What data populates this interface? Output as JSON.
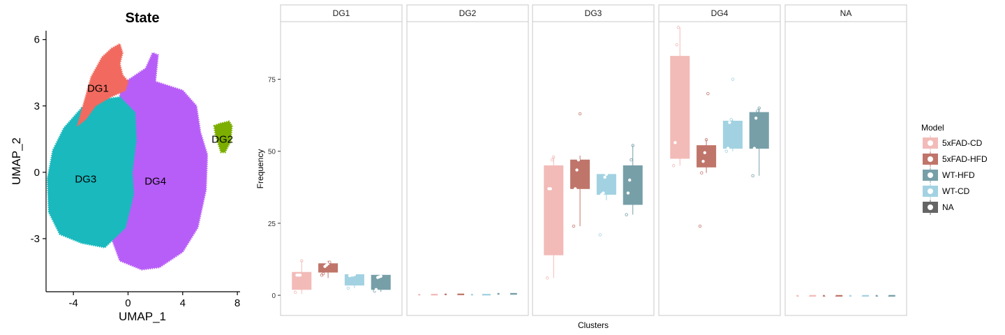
{
  "chart_data": [
    {
      "type": "scatter",
      "title": "State",
      "xlabel": "UMAP_1",
      "ylabel": "UMAP_2",
      "xlim": [
        -6.0,
        8.2
      ],
      "ylim": [
        -5.4,
        6.4
      ],
      "xticks": [
        -4,
        0,
        4,
        8
      ],
      "xtick_labels": [
        "-4",
        "0",
        "4",
        "8"
      ],
      "yticks": [
        -3,
        0,
        3,
        6
      ],
      "ytick_labels": [
        "-3",
        "0",
        "3",
        "6"
      ],
      "grid": false,
      "clusters": [
        {
          "name": "DG4",
          "color": "#B85EF8",
          "label_pos": [
            2.0,
            -0.4
          ],
          "polygon": [
            [
              -0.9,
              2.6
            ],
            [
              -0.4,
              4.0
            ],
            [
              1.3,
              4.7
            ],
            [
              1.8,
              5.4
            ],
            [
              2.2,
              5.3
            ],
            [
              2.0,
              4.1
            ],
            [
              4.0,
              3.7
            ],
            [
              5.0,
              3.0
            ],
            [
              5.3,
              1.8
            ],
            [
              5.8,
              0.8
            ],
            [
              5.7,
              -0.8
            ],
            [
              5.1,
              -2.5
            ],
            [
              4.0,
              -3.6
            ],
            [
              2.3,
              -4.3
            ],
            [
              1.0,
              -4.4
            ],
            [
              -0.6,
              -4.0
            ],
            [
              -1.2,
              -3.0
            ],
            [
              -1.0,
              -1.5
            ],
            [
              -0.8,
              0.0
            ],
            [
              -0.7,
              1.5
            ]
          ]
        },
        {
          "name": "DG3",
          "color": "#19B9BE",
          "label_pos": [
            -3.1,
            -0.3
          ],
          "polygon": [
            [
              -3.4,
              2.9
            ],
            [
              -1.8,
              3.3
            ],
            [
              -0.6,
              3.4
            ],
            [
              0.5,
              2.7
            ],
            [
              0.6,
              1.5
            ],
            [
              0.3,
              0.0
            ],
            [
              0.4,
              -1.0
            ],
            [
              -0.2,
              -2.5
            ],
            [
              -1.7,
              -3.4
            ],
            [
              -3.4,
              -3.2
            ],
            [
              -5.0,
              -2.8
            ],
            [
              -5.8,
              -1.8
            ],
            [
              -5.9,
              -0.3
            ],
            [
              -5.5,
              1.0
            ],
            [
              -4.7,
              2.0
            ]
          ]
        },
        {
          "name": "DG1",
          "color": "#F26A5F",
          "label_pos": [
            -2.2,
            3.8
          ],
          "polygon": [
            [
              -3.7,
              2.1
            ],
            [
              -3.2,
              3.2
            ],
            [
              -2.7,
              4.3
            ],
            [
              -1.9,
              5.2
            ],
            [
              -1.2,
              5.6
            ],
            [
              -0.6,
              5.8
            ],
            [
              -0.4,
              5.4
            ],
            [
              -0.6,
              4.9
            ],
            [
              -0.4,
              4.4
            ],
            [
              0.0,
              4.1
            ],
            [
              -0.2,
              3.7
            ],
            [
              -1.3,
              3.4
            ],
            [
              -2.4,
              3.0
            ],
            [
              -3.1,
              2.4
            ]
          ]
        },
        {
          "name": "DG2",
          "color": "#7CAE00",
          "label_pos": [
            6.9,
            1.5
          ],
          "polygon": [
            [
              6.3,
              2.1
            ],
            [
              6.7,
              2.2
            ],
            [
              7.4,
              2.3
            ],
            [
              7.6,
              2.1
            ],
            [
              7.5,
              1.4
            ],
            [
              7.1,
              0.9
            ],
            [
              6.8,
              0.9
            ],
            [
              6.6,
              1.3
            ],
            [
              6.4,
              1.7
            ]
          ]
        }
      ]
    },
    {
      "type": "box",
      "facets": [
        "DG1",
        "DG2",
        "DG3",
        "DG4",
        "NA"
      ],
      "xlabel": "Clusters",
      "ylabel": "Frequency",
      "ylim": [
        -7,
        95
      ],
      "yticks": [
        0,
        25,
        50,
        75
      ],
      "ytick_labels": [
        "0",
        "25",
        "50",
        "75"
      ],
      "grid": false,
      "legend": {
        "title": "Model",
        "position": "right",
        "entries": [
          {
            "label": "5xFAD-CD",
            "color": "#F2BBB8"
          },
          {
            "label": "5xFAD-HFD",
            "color": "#C0756A"
          },
          {
            "label": "WT-HFD",
            "color": "#779FA8"
          },
          {
            "label": "WT-CD",
            "color": "#A2D2E2"
          },
          {
            "label": "NA",
            "color": "#656565"
          }
        ]
      },
      "groups": [
        {
          "facet": "DG1",
          "model": "5xFAD-CD",
          "q1": 2,
          "median": 7,
          "q3": 8,
          "whisker_low": 0.5,
          "whisker_high": 12,
          "points": [
            1,
            7,
            7,
            7,
            12
          ]
        },
        {
          "facet": "DG1",
          "model": "5xFAD-HFD",
          "q1": 8,
          "median": 10,
          "q3": 11,
          "whisker_low": 6,
          "whisker_high": 12,
          "points": [
            7,
            7.5,
            10,
            10.5,
            11,
            11.5
          ]
        },
        {
          "facet": "DG1",
          "model": "WT-CD",
          "q1": 3.5,
          "median": 6.8,
          "q3": 7.2,
          "whisker_low": 2.5,
          "whisker_high": 7.2,
          "points": [
            2.5,
            6.8,
            7,
            7,
            7.2
          ]
        },
        {
          "facet": "DG1",
          "model": "WT-HFD",
          "q1": 2,
          "median": 6.2,
          "q3": 7,
          "whisker_low": 1.2,
          "whisker_high": 7,
          "points": [
            1.5,
            2,
            6.2,
            6.4,
            6.6
          ]
        },
        {
          "facet": "DG2",
          "model": "5xFAD-CD",
          "q1": 0.2,
          "median": 0.3,
          "q3": 0.4,
          "whisker_low": 0.1,
          "whisker_high": 0.5,
          "points": [
            0.3,
            0.3,
            0.3,
            0.3,
            0.3,
            0.3
          ]
        },
        {
          "facet": "DG2",
          "model": "5xFAD-HFD",
          "q1": 0.3,
          "median": 0.4,
          "q3": 0.5,
          "whisker_low": 0.2,
          "whisker_high": 0.6,
          "points": [
            0.4,
            0.4,
            0.4,
            0.4,
            0.4,
            0.4
          ]
        },
        {
          "facet": "DG2",
          "model": "WT-CD",
          "q1": 0.2,
          "median": 0.3,
          "q3": 0.4,
          "whisker_low": 0.1,
          "whisker_high": 0.5,
          "points": [
            0.3,
            0.3,
            0.3,
            0.3,
            0.3
          ]
        },
        {
          "facet": "DG2",
          "model": "WT-HFD",
          "q1": 0.3,
          "median": 0.5,
          "q3": 0.7,
          "whisker_low": 0.2,
          "whisker_high": 0.8,
          "points": [
            0.5,
            0.5,
            0.5,
            0.5,
            0.5,
            0.5
          ]
        },
        {
          "facet": "DG3",
          "model": "5xFAD-CD",
          "q1": 14,
          "median": 37,
          "q3": 45,
          "whisker_low": 6,
          "whisker_high": 48,
          "points": [
            6,
            37,
            37,
            47,
            48
          ]
        },
        {
          "facet": "DG3",
          "model": "5xFAD-HFD",
          "q1": 37,
          "median": 43.5,
          "q3": 47,
          "whisker_low": 24,
          "whisker_high": 48.5,
          "points": [
            24,
            37,
            43.5,
            47,
            63
          ]
        },
        {
          "facet": "DG3",
          "model": "WT-CD",
          "q1": 35,
          "median": 35.5,
          "q3": 42,
          "whisker_low": 33,
          "whisker_high": 42,
          "points": [
            21,
            35,
            35.5,
            41,
            42
          ]
        },
        {
          "facet": "DG3",
          "model": "WT-HFD",
          "q1": 31.5,
          "median": 35.5,
          "q3": 45,
          "whisker_low": 28,
          "whisker_high": 52,
          "points": [
            28,
            35.5,
            40,
            47,
            52
          ]
        },
        {
          "facet": "DG4",
          "model": "5xFAD-CD",
          "q1": 47.5,
          "median": 53,
          "q3": 83,
          "whisker_low": 45,
          "whisker_high": 93,
          "points": [
            45,
            53,
            87,
            93
          ]
        },
        {
          "facet": "DG4",
          "model": "5xFAD-HFD",
          "q1": 44.5,
          "median": 46.5,
          "q3": 52,
          "whisker_low": 42.5,
          "whisker_high": 54,
          "points": [
            24,
            42.5,
            46.5,
            49.5,
            54,
            70
          ]
        },
        {
          "facet": "DG4",
          "model": "WT-CD",
          "q1": 51,
          "median": 60,
          "q3": 60.5,
          "whisker_low": 50,
          "whisker_high": 61,
          "points": [
            50,
            51,
            60,
            61,
            75
          ]
        },
        {
          "facet": "DG4",
          "model": "WT-HFD",
          "q1": 51,
          "median": 61.5,
          "q3": 63.5,
          "whisker_low": 41.5,
          "whisker_high": 65,
          "points": [
            41.5,
            51,
            61.5,
            64,
            65
          ]
        },
        {
          "facet": "NA",
          "model": "5xFAD-CD",
          "q1": 0,
          "median": 0,
          "q3": 0,
          "whisker_low": 0,
          "whisker_high": 0,
          "points": [
            0,
            0,
            0,
            0,
            0,
            0
          ]
        },
        {
          "facet": "NA",
          "model": "5xFAD-HFD",
          "q1": 0,
          "median": 0,
          "q3": 0,
          "whisker_low": 0,
          "whisker_high": 0,
          "points": [
            0,
            0,
            0,
            0,
            0,
            0
          ]
        },
        {
          "facet": "NA",
          "model": "WT-CD",
          "q1": 0,
          "median": 0,
          "q3": 0,
          "whisker_low": 0,
          "whisker_high": 0,
          "points": [
            0,
            0,
            0,
            0,
            0,
            0
          ]
        },
        {
          "facet": "NA",
          "model": "WT-HFD",
          "q1": 0,
          "median": 0,
          "q3": 0,
          "whisker_low": 0,
          "whisker_high": 0,
          "points": [
            0,
            0,
            0,
            0,
            0,
            0
          ]
        }
      ]
    }
  ]
}
